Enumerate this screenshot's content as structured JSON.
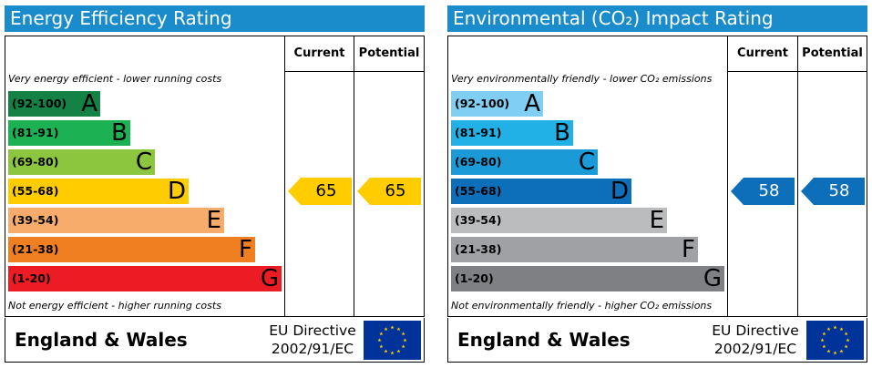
{
  "column_current": "Current",
  "column_potential": "Potential",
  "footer_region": "England & Wales",
  "footer_directive_line1": "EU Directive",
  "footer_directive_line2": "2002/91/EC",
  "eu_flag_icon": "eu-flag-icon",
  "chart_data": [
    {
      "type": "bar",
      "title": "Energy Efficiency Rating",
      "top_note": "Very energy efficient - lower running costs",
      "bottom_note": "Not energy efficient - higher running costs",
      "bands": [
        {
          "range": "(92-100)",
          "letter": "A",
          "color": "#138244",
          "text_color": "#000000"
        },
        {
          "range": "(81-91)",
          "letter": "B",
          "color": "#1cb254",
          "text_color": "#000000"
        },
        {
          "range": "(69-80)",
          "letter": "C",
          "color": "#8cc63f",
          "text_color": "#000000"
        },
        {
          "range": "(55-68)",
          "letter": "D",
          "color": "#ffcc00",
          "text_color": "#000000"
        },
        {
          "range": "(39-54)",
          "letter": "E",
          "color": "#f7ac6b",
          "text_color": "#000000"
        },
        {
          "range": "(21-38)",
          "letter": "F",
          "color": "#f07f22",
          "text_color": "#000000"
        },
        {
          "range": "(1-20)",
          "letter": "G",
          "color": "#ec1c24",
          "text_color": "#000000"
        }
      ],
      "current": {
        "value": 65,
        "band": "D",
        "color": "#ffcc00",
        "text_color": "#000000"
      },
      "potential": {
        "value": 65,
        "band": "D",
        "color": "#ffcc00",
        "text_color": "#000000"
      }
    },
    {
      "type": "bar",
      "title": "Environmental (CO₂) Impact Rating",
      "top_note": "Very environmentally friendly - lower CO₂ emissions",
      "bottom_note": "Not environmentally friendly - higher CO₂ emissions",
      "bands": [
        {
          "range": "(92-100)",
          "letter": "A",
          "color": "#80cff3",
          "text_color": "#000000"
        },
        {
          "range": "(81-91)",
          "letter": "B",
          "color": "#21b1e7",
          "text_color": "#000000"
        },
        {
          "range": "(69-80)",
          "letter": "C",
          "color": "#1b9ad8",
          "text_color": "#000000"
        },
        {
          "range": "(55-68)",
          "letter": "D",
          "color": "#0d6fba",
          "text_color": "#000000"
        },
        {
          "range": "(39-54)",
          "letter": "E",
          "color": "#bbbcbe",
          "text_color": "#000000"
        },
        {
          "range": "(21-38)",
          "letter": "F",
          "color": "#a0a1a5",
          "text_color": "#000000"
        },
        {
          "range": "(1-20)",
          "letter": "G",
          "color": "#7f8083",
          "text_color": "#000000"
        }
      ],
      "current": {
        "value": 58,
        "band": "D",
        "color": "#0d6fba",
        "text_color": "#ffffff"
      },
      "potential": {
        "value": 58,
        "band": "D",
        "color": "#0d6fba",
        "text_color": "#ffffff"
      }
    }
  ]
}
